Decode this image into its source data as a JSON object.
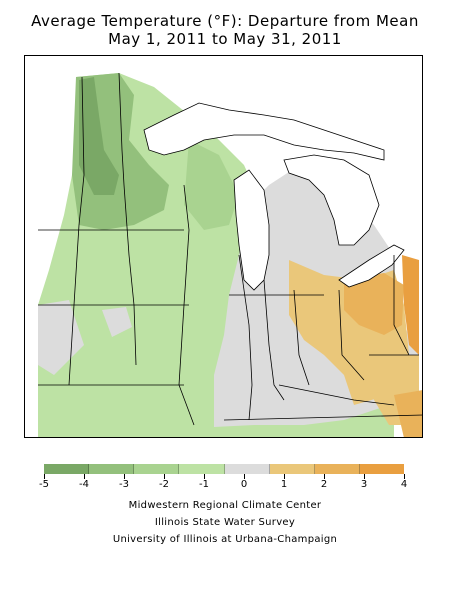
{
  "title_line1": "Average Temperature (°F): Departure from Mean",
  "title_line2": "May 1, 2011 to May 31, 2011",
  "legend": {
    "colors": [
      "#7aa866",
      "#93c07c",
      "#a9d390",
      "#bde2a4",
      "#dcdcdc",
      "#eac77a",
      "#e9b25a",
      "#e99f40"
    ],
    "ticks": [
      "-5",
      "-4",
      "-3",
      "-2",
      "-1",
      "0",
      "1",
      "2",
      "3",
      "4"
    ]
  },
  "credits": {
    "line1": "Midwestern Regional Climate Center",
    "line2": "Illinois State Water Survey",
    "line3": "University of Illinois at Urbana-Champaign"
  }
}
